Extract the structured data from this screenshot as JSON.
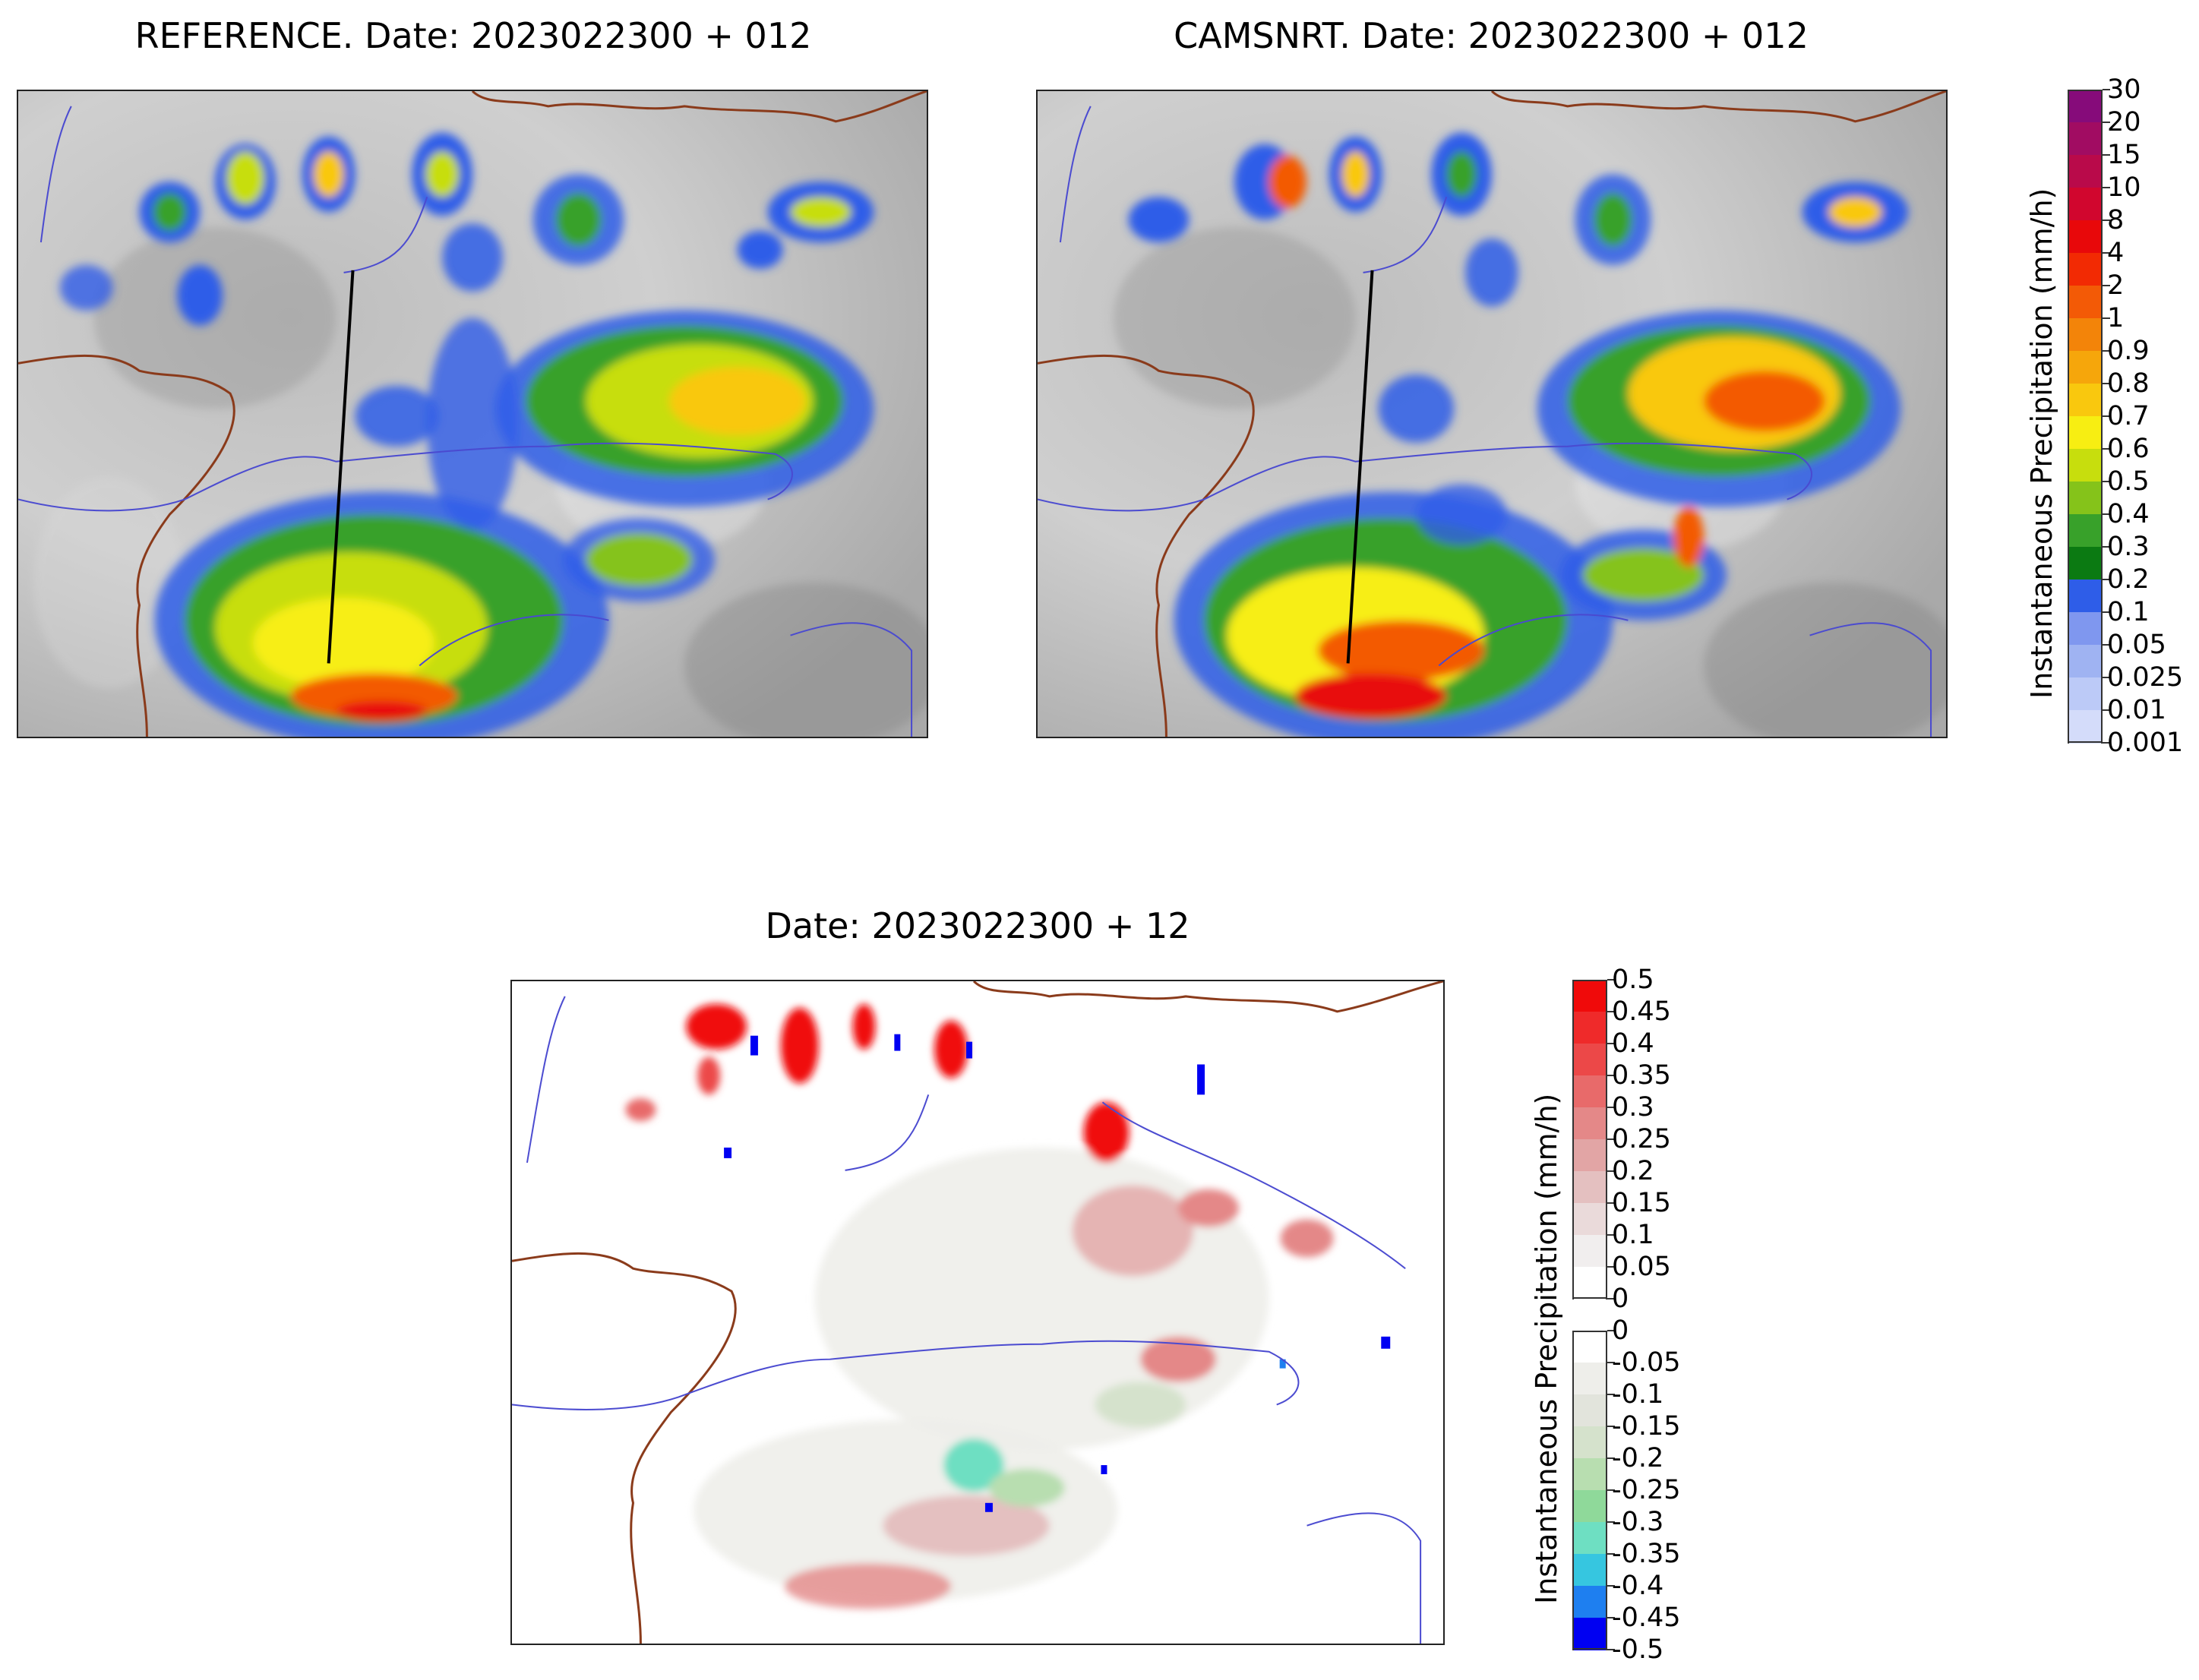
{
  "panels": {
    "reference_title": "REFERENCE. Date: 2023022300 + 012",
    "camsnrt_title": "CAMSNRT. Date: 2023022300 + 012",
    "difference_title": "Date: 2023022300 + 12"
  },
  "colorbar_precip": {
    "label": "Instantaneous Precipitation (mm/h)",
    "levels": [
      "0.001",
      "0.01",
      "0.025",
      "0.05",
      "0.1",
      "0.2",
      "0.3",
      "0.4",
      "0.5",
      "0.6",
      "0.7",
      "0.8",
      "0.9",
      "1",
      "2",
      "4",
      "8",
      "10",
      "15",
      "20",
      "30"
    ],
    "colors": [
      "#d4dcfa",
      "#bccaf7",
      "#9fb3f2",
      "#7f97ef",
      "#2e5de8",
      "#0b7a12",
      "#38a12a",
      "#85c31a",
      "#c7de0d",
      "#f7ee12",
      "#f9c80e",
      "#f6a60b",
      "#f38409",
      "#f35a06",
      "#f22a03",
      "#e8080a",
      "#d1062e",
      "#b90a4a",
      "#a10c62",
      "#860b7a"
    ]
  },
  "colorbar_diff": {
    "label": "Instantaneous Precipitation (mm/h)",
    "positive_levels": [
      "0.5",
      "0.45",
      "0.4",
      "0.35",
      "0.3",
      "0.25",
      "0.2",
      "0.15",
      "0.1",
      "0.05",
      "0"
    ],
    "positive_colors": [
      "#f00a0a",
      "#ef2a2a",
      "#ec4848",
      "#e86a6a",
      "#e48888",
      "#e2a5a5",
      "#e4c0c0",
      "#eadada",
      "#f1eeee",
      "#ffffff"
    ],
    "negative_levels": [
      "0",
      "-0.05",
      "-0.1",
      "-0.15",
      "-0.2",
      "-0.25",
      "-0.3",
      "-0.35",
      "-0.4",
      "-0.45",
      "-0.5"
    ],
    "negative_colors": [
      "#ffffff",
      "#eeeeea",
      "#e2e4dc",
      "#d5e2cc",
      "#b8deb0",
      "#8fd99a",
      "#6edfc2",
      "#36c6e0",
      "#1e7ff0",
      "#0000f2"
    ]
  }
}
